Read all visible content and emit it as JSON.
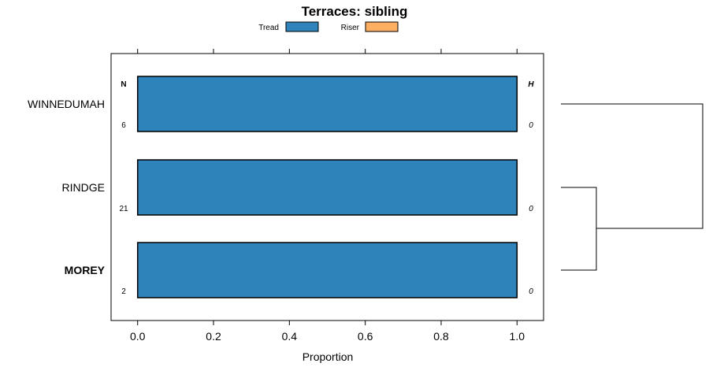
{
  "chart_data": {
    "type": "bar",
    "orientation": "horizontal",
    "stacked": true,
    "title": "Terraces: sibling",
    "xlabel": "Proportion",
    "xlim": [
      -0.07,
      1.07
    ],
    "xticks": [
      "0.0",
      "0.2",
      "0.4",
      "0.6",
      "0.8",
      "1.0"
    ],
    "categories": [
      "WINNEDUMAH",
      "RINDGE",
      "MOREY"
    ],
    "highlighted_category": "MOREY",
    "series": [
      {
        "name": "Tread",
        "color": "#2e83ba",
        "values": [
          1.0,
          1.0,
          1.0
        ]
      },
      {
        "name": "Riser",
        "color": "#fdae61",
        "values": [
          0.0,
          0.0,
          0.0
        ]
      }
    ],
    "n_header": "N",
    "n_values": [
      "6",
      "21",
      "2"
    ],
    "h_header": "H",
    "h_values": [
      "0",
      "0",
      "0"
    ],
    "legend_placement": "top",
    "grid": false,
    "dendrogram": {
      "leaves": [
        "WINNEDUMAH",
        "RINDGE",
        "MOREY"
      ],
      "merges": [
        [
          "RINDGE",
          "MOREY"
        ],
        [
          "WINNEDUMAH",
          "RINDGE+MOREY"
        ]
      ]
    }
  }
}
